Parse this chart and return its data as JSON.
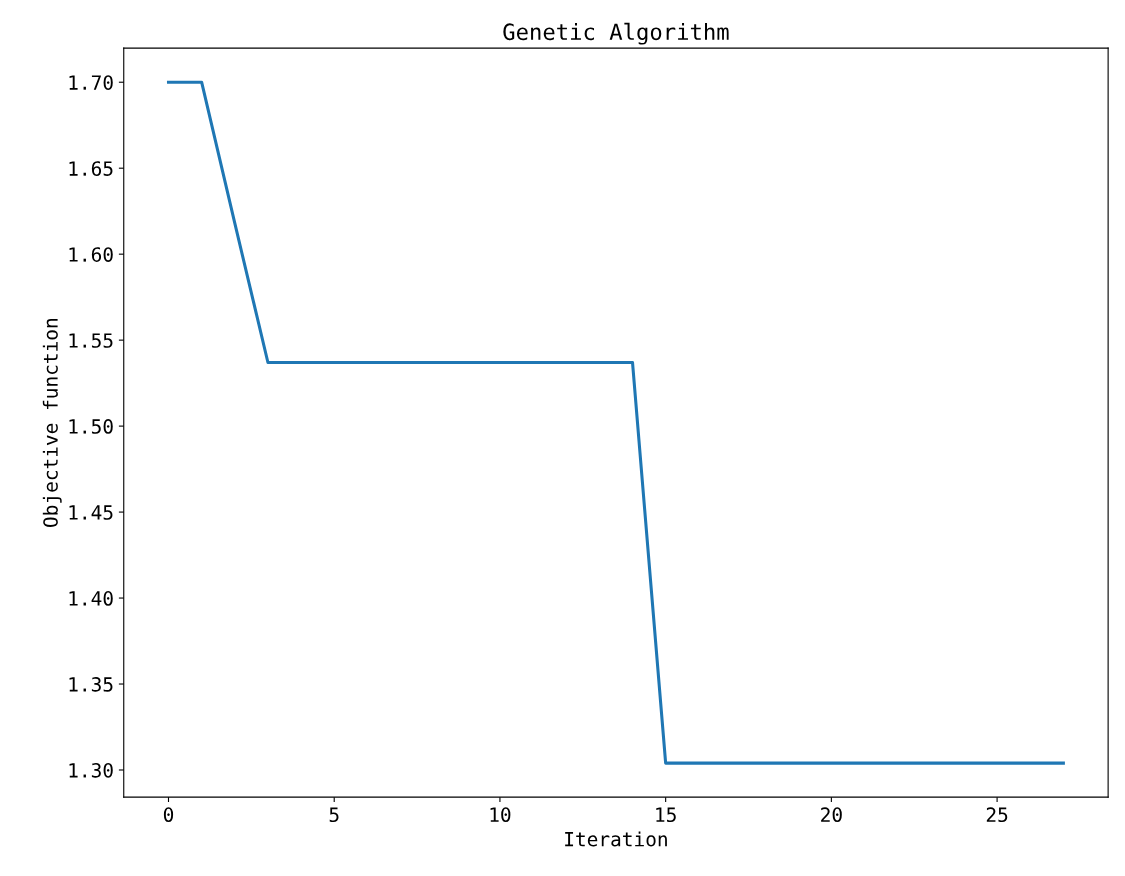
{
  "chart_data": {
    "type": "line",
    "title": "Genetic Algorithm",
    "xlabel": "Iteration",
    "ylabel": "Objective function",
    "x": [
      0,
      1,
      2,
      3,
      4,
      5,
      6,
      7,
      8,
      9,
      10,
      11,
      12,
      13,
      14,
      15,
      16,
      17,
      18,
      19,
      20,
      21,
      22,
      23,
      24,
      25,
      26,
      27
    ],
    "series": [
      {
        "color": "#1f77b4",
        "values": [
          1.7,
          1.7,
          1.618,
          1.537,
          1.537,
          1.537,
          1.537,
          1.537,
          1.537,
          1.537,
          1.537,
          1.537,
          1.537,
          1.537,
          1.537,
          1.304,
          1.304,
          1.304,
          1.304,
          1.304,
          1.304,
          1.304,
          1.304,
          1.304,
          1.304,
          1.304,
          1.304,
          1.304
        ]
      }
    ],
    "xlim": [
      -1.35,
      28.35
    ],
    "ylim": [
      1.2842,
      1.7198
    ],
    "xticks": [
      0,
      5,
      10,
      15,
      20,
      25
    ],
    "yticks": [
      {
        "value": 1.3,
        "label": "1.30"
      },
      {
        "value": 1.35,
        "label": "1.35"
      },
      {
        "value": 1.4,
        "label": "1.40"
      },
      {
        "value": 1.45,
        "label": "1.45"
      },
      {
        "value": 1.5,
        "label": "1.50"
      },
      {
        "value": 1.55,
        "label": "1.55"
      },
      {
        "value": 1.6,
        "label": "1.60"
      },
      {
        "value": 1.65,
        "label": "1.65"
      },
      {
        "value": 1.7,
        "label": "1.70"
      }
    ],
    "grid": false,
    "legend": false,
    "marker": "none",
    "line_style": "solid"
  }
}
